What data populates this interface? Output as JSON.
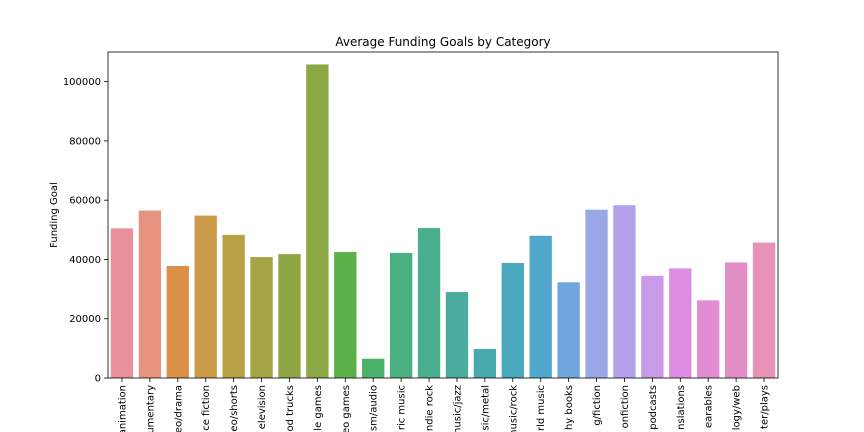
{
  "chart_data": {
    "type": "bar",
    "title": "Average Funding Goals by Category",
    "xlabel": "",
    "ylabel": "Funding Goal",
    "ylim": [
      0,
      110000
    ],
    "yticks": [
      0,
      20000,
      40000,
      60000,
      80000,
      100000
    ],
    "ytick_labels": [
      "0",
      "20000",
      "40000",
      "60000",
      "80000",
      "100000"
    ],
    "categories": [
      "animation",
      "documentary",
      "film & video/drama",
      "science fiction",
      "film & video/shorts",
      "television",
      "food trucks",
      "mobile games",
      "video games",
      "journalism/audio",
      "electric music",
      "indie rock",
      "music/jazz",
      "music/metal",
      "music/rock",
      "world music",
      "photography books",
      "publishing/fiction",
      "nonfiction",
      "podcasts",
      "translations",
      "wearables",
      "technology/web",
      "theater/plays"
    ],
    "tick_labels": [
      "animation",
      "umentary",
      "eo/drama",
      "ce fiction",
      "eo/shorts",
      "elevision",
      "od trucks",
      "le games",
      "eo games",
      "sm/audio",
      "ric music",
      "ndie rock",
      "nusic/jazz",
      "sic/metal",
      "nusic/rock",
      "rld music",
      "hy books",
      "g/fiction",
      "onfiction",
      "podcasts",
      "nslations",
      "earables",
      "logy/web",
      "ter/plays"
    ],
    "values": [
      50500,
      56500,
      37800,
      54800,
      48300,
      40800,
      41800,
      105800,
      42500,
      6500,
      42200,
      50600,
      29000,
      9800,
      38800,
      48000,
      32300,
      56800,
      58300,
      34500,
      37000,
      26200,
      39000,
      45700
    ],
    "colors": [
      "#e8919a",
      "#e6937f",
      "#db9048",
      "#c99a48",
      "#b8a045",
      "#a4a444",
      "#8fa544",
      "#8aa844",
      "#5bb147",
      "#4cb26b",
      "#4ab082",
      "#4aae8f",
      "#4aac9f",
      "#48aaac",
      "#4aa8bd",
      "#52a7cf",
      "#6ea6dd",
      "#9aa8e8",
      "#b5a0ec",
      "#c99ae8",
      "#dd8ee4",
      "#e28cd3",
      "#e38fc5",
      "#e892b7"
    ],
    "grid": false,
    "legend": "none"
  }
}
